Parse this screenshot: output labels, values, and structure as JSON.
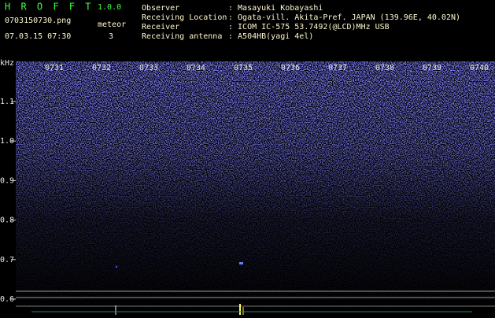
{
  "header": {
    "app_name": "H R O F F T",
    "version": "1.0.0",
    "file_name": "0703150730.png",
    "meteor_label": "meteor",
    "timestamp": "07.03.15 07:30",
    "meteor_count": "3"
  },
  "info": [
    {
      "label": "Observer",
      "value": ": Masayuki Kobayashi"
    },
    {
      "label": "Receiving Location",
      "value": ": Ogata-vill. Akita-Pref. JAPAN (139.96E, 40.02N)"
    },
    {
      "label": "Receiver",
      "value": ": ICOM IC-575 53.7492(@LCD)MHz USB"
    },
    {
      "label": "Receiving antenna",
      "value": ": A504HB(yagi 4el)"
    }
  ],
  "spectrogram": {
    "unit": "kHz",
    "freq_labels": [
      "1.1",
      "1.0",
      "0.9",
      "0.8",
      "0.7",
      "0.6"
    ],
    "time_labels": [
      "0731",
      "0732",
      "0733",
      "0734",
      "0735",
      "0736",
      "0737",
      "0738",
      "0739",
      "0740"
    ]
  }
}
